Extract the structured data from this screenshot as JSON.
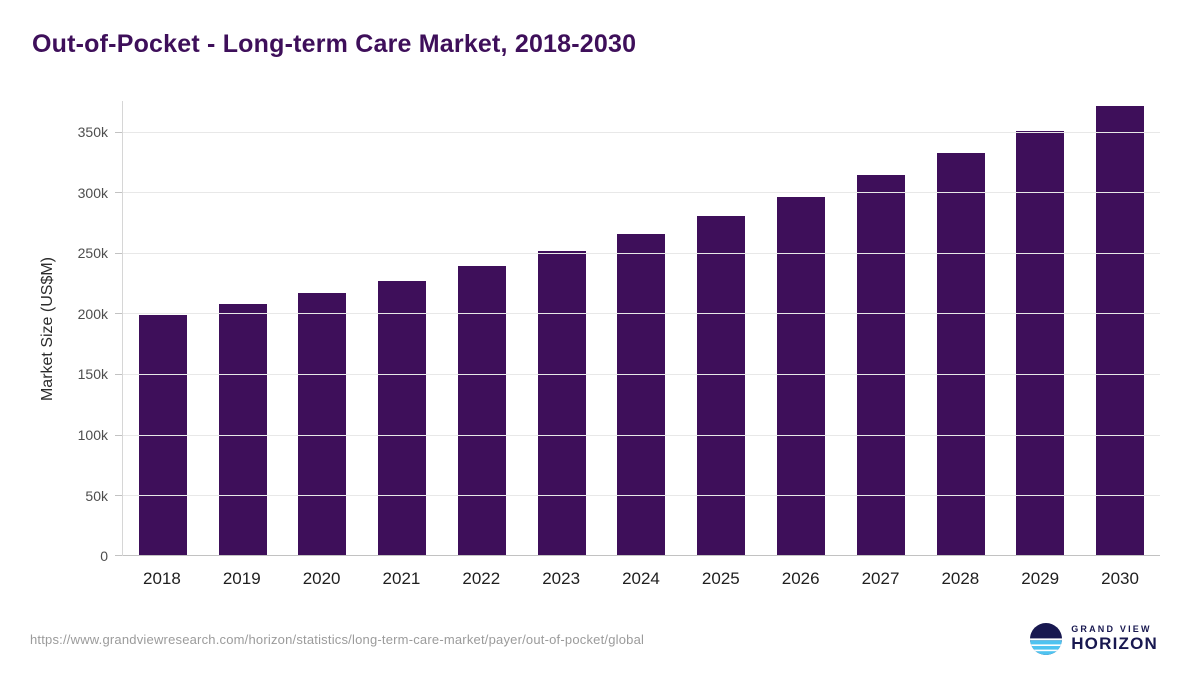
{
  "title": "Out-of-Pocket - Long-term Care Market, 2018-2030",
  "chart_data": {
    "type": "bar",
    "title": "Out-of-Pocket - Long-term Care Market, 2018-2030",
    "categories": [
      "2018",
      "2019",
      "2020",
      "2021",
      "2022",
      "2023",
      "2024",
      "2025",
      "2026",
      "2027",
      "2028",
      "2029",
      "2030"
    ],
    "values": [
      199000,
      208000,
      217500,
      227000,
      240000,
      252000,
      266500,
      281000,
      297000,
      315000,
      333000,
      351500,
      371500
    ],
    "xlabel": "",
    "ylabel": "Market Size (US$M)",
    "ylim": [
      0,
      376000
    ],
    "yticks": [
      {
        "value": 0,
        "label": "0"
      },
      {
        "value": 50000,
        "label": "50k"
      },
      {
        "value": 100000,
        "label": "100k"
      },
      {
        "value": 150000,
        "label": "150k"
      },
      {
        "value": 200000,
        "label": "200k"
      },
      {
        "value": 250000,
        "label": "250k"
      },
      {
        "value": 300000,
        "label": "300k"
      },
      {
        "value": 350000,
        "label": "350k"
      }
    ],
    "grid": true,
    "legend": false,
    "bar_color": "#3e0f5a"
  },
  "colors": {
    "bar": "#3e0f5a",
    "title": "#3e0f5a",
    "navy": "#181850",
    "accent_blue": "#4fc3f0"
  },
  "footer": {
    "source_url": "https://www.grandviewresearch.com/horizon/statistics/long-term-care-market/payer/out-of-pocket/global",
    "logo": {
      "line1": "GRAND VIEW",
      "line2": "HORIZON"
    }
  }
}
